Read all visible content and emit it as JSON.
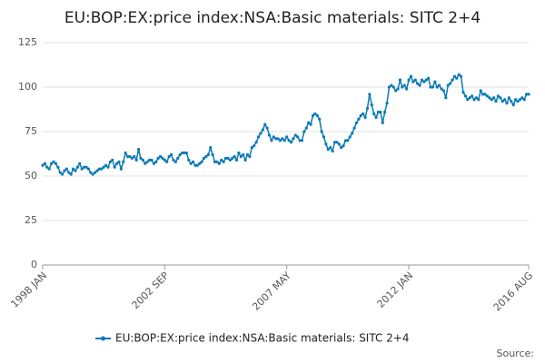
{
  "chart_data": {
    "type": "line",
    "title": "EU:BOP:EX:price index:NSA:Basic materials: SITC 2+4",
    "source": "Source:",
    "categories": [
      "1998 JAN",
      null,
      null,
      null,
      null,
      null,
      null,
      null,
      null,
      null,
      null,
      null,
      null,
      null,
      null,
      null,
      null,
      null,
      null,
      null,
      null,
      null,
      null,
      null,
      null,
      null,
      null,
      null,
      null,
      null,
      null,
      null,
      null,
      null,
      null,
      null,
      null,
      null,
      null,
      null,
      null,
      null,
      null,
      null,
      null,
      null,
      null,
      null,
      null,
      null,
      null,
      null,
      null,
      null,
      null,
      null,
      "2002 SEP",
      null,
      null,
      null,
      null,
      null,
      null,
      null,
      null,
      null,
      null,
      null,
      null,
      null,
      null,
      null,
      null,
      null,
      null,
      null,
      null,
      null,
      null,
      null,
      null,
      null,
      null,
      null,
      null,
      null,
      null,
      null,
      null,
      null,
      null,
      null,
      null,
      null,
      null,
      null,
      null,
      null,
      null,
      null,
      null,
      null,
      null,
      null,
      null,
      null,
      null,
      null,
      null,
      null,
      null,
      null,
      "2007 MAY",
      null,
      null,
      null,
      null,
      null,
      null,
      null,
      null,
      null,
      null,
      null,
      null,
      null,
      null,
      null,
      null,
      null,
      null,
      null,
      null,
      null,
      null,
      null,
      null,
      null,
      null,
      null,
      null,
      null,
      null,
      null,
      null,
      null,
      null,
      null,
      null,
      null,
      null,
      null,
      null,
      null,
      null,
      null,
      null,
      null,
      null,
      null,
      null,
      null,
      null,
      null,
      null,
      null,
      null,
      null,
      "2012 JAN",
      null,
      null,
      null,
      null,
      null,
      null,
      null,
      null,
      null,
      null,
      null,
      null,
      null,
      null,
      null,
      null,
      null,
      null,
      null,
      null,
      null,
      null,
      null,
      null,
      null,
      null,
      null,
      null,
      null,
      null,
      null,
      null,
      null,
      null,
      null,
      null,
      null,
      null,
      null,
      null,
      null,
      null,
      null,
      null,
      null,
      null,
      null,
      null,
      null,
      null,
      null,
      null,
      null,
      null,
      "2016 AUG"
    ],
    "series": [
      {
        "name": "EU:BOP:EX:price index:NSA:Basic materials: SITC 2+4",
        "color": "#0a7ab5",
        "values": [
          56,
          57,
          55,
          54,
          57,
          58,
          57,
          55,
          52,
          51,
          53,
          54,
          52,
          51,
          54,
          53,
          55,
          57,
          54,
          55,
          55,
          54,
          52,
          51,
          52,
          53,
          54,
          54,
          55,
          56,
          55,
          58,
          59,
          55,
          57,
          58,
          54,
          58,
          63,
          61,
          61,
          60,
          61,
          59,
          65,
          60,
          59,
          57,
          58,
          59,
          59,
          57,
          58,
          60,
          61,
          60,
          59,
          58,
          61,
          62,
          59,
          58,
          60,
          62,
          63,
          63,
          63,
          59,
          57,
          58,
          56,
          56,
          57,
          58,
          60,
          61,
          62,
          66,
          62,
          58,
          58,
          57,
          59,
          58,
          60,
          60,
          59,
          60,
          61,
          59,
          63,
          61,
          62,
          59,
          62,
          61,
          66,
          67,
          69,
          72,
          74,
          76,
          79,
          77,
          73,
          70,
          72,
          71,
          71,
          70,
          71,
          70,
          72,
          70,
          69,
          71,
          73,
          72,
          70,
          70,
          75,
          77,
          80,
          79,
          84,
          85,
          84,
          82,
          75,
          72,
          68,
          65,
          66,
          64,
          69,
          69,
          68,
          66,
          67,
          70,
          70,
          72,
          74,
          77,
          80,
          82,
          84,
          85,
          83,
          88,
          96,
          90,
          85,
          83,
          86,
          86,
          80,
          86,
          91,
          100,
          101,
          100,
          98,
          99,
          104,
          100,
          101,
          99,
          104,
          106,
          103,
          104,
          102,
          101,
          104,
          103,
          104,
          105,
          100,
          100,
          103,
          100,
          101,
          99,
          98,
          94,
          101,
          102,
          104,
          106,
          105,
          107,
          106,
          97,
          95,
          93,
          94,
          95,
          93,
          94,
          93,
          98,
          96,
          96,
          95,
          94,
          93,
          94,
          92,
          95,
          94,
          92,
          93,
          91,
          94,
          92,
          90,
          93,
          92,
          93,
          94,
          93,
          96,
          96
        ]
      }
    ],
    "ylim": [
      0,
      125
    ],
    "yticks": [
      0,
      25,
      50,
      75,
      100,
      125
    ],
    "grid": true
  }
}
